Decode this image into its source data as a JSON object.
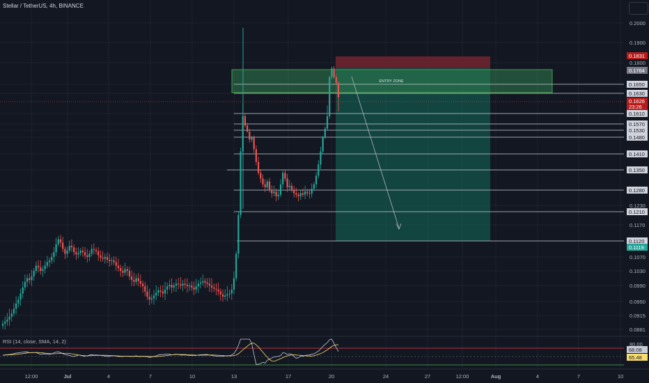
{
  "header": {
    "symbol": "Stellar / TetherUS, 4h, BINANCE"
  },
  "colors": {
    "background": "#131722",
    "up": "#26a69a",
    "down": "#ef5350",
    "grid": "#1e222d",
    "entry_zone_fill": "#2e7d4f",
    "stop_zone_fill": "#7f2731",
    "target_zone_fill": "#145a4d"
  },
  "chart_data": [
    {
      "type": "candlestick",
      "title": "Stellar / TetherUS, 4h, BINANCE",
      "price_axis": {
        "ticks": [
          "0.2000",
          "0.1900",
          "0.1800",
          "0.1650",
          "0.1630",
          "0.1610",
          "0.1570",
          "0.1530",
          "0.1480",
          "0.1410",
          "0.1350",
          "0.1280",
          "0.1230",
          "0.1210",
          "0.1170",
          "0.1120",
          "0.1070",
          "0.1030",
          "0.0990",
          "0.0950",
          "0.0915",
          "0.0881"
        ]
      },
      "time_axis": {
        "ticks": [
          "12:00",
          "Jul",
          "4",
          "7",
          "10",
          "13",
          "17",
          "20",
          "24",
          "27",
          "12:00",
          "Aug",
          "4",
          "7",
          "10"
        ]
      },
      "horizontal_levels": [
        "0.1650",
        "0.1630",
        "0.1610",
        "0.1570",
        "0.1530",
        "0.1480",
        "0.1410",
        "0.1350",
        "0.1280",
        "0.1210",
        "0.1120"
      ],
      "price_tags": [
        {
          "label": "0.1831",
          "color": "#b71c1c"
        },
        {
          "label": "0.1764",
          "color": "#787b86"
        },
        {
          "label": "0.1626",
          "color": "#b71c1c"
        },
        {
          "label": "23:26",
          "color": "#b71c1c"
        },
        {
          "label": "0.1119",
          "color": "#26a69a"
        }
      ],
      "entry_zone": {
        "label": "ENTRY ZONE",
        "low": 0.165,
        "high": 0.1764
      },
      "stop_zone": {
        "low": 0.1764,
        "high": 0.1831
      },
      "target_zone": {
        "low": 0.112,
        "high": 0.1764
      },
      "close_series": [
        0.0895,
        0.09,
        0.0905,
        0.0912,
        0.092,
        0.0932,
        0.0945,
        0.0955,
        0.097,
        0.0985,
        0.1,
        0.101,
        0.1005,
        0.1015,
        0.103,
        0.1045,
        0.104,
        0.103,
        0.1035,
        0.1045,
        0.1055,
        0.106,
        0.107,
        0.1085,
        0.111,
        0.1125,
        0.1115,
        0.1095,
        0.108,
        0.109,
        0.1105,
        0.11,
        0.1085,
        0.1078,
        0.1082,
        0.109,
        0.1085,
        0.1075,
        0.107,
        0.108,
        0.1095,
        0.1092,
        0.1088,
        0.1075,
        0.1068,
        0.1065,
        0.107,
        0.1062,
        0.1058,
        0.106,
        0.1055,
        0.1045,
        0.1038,
        0.103,
        0.1025,
        0.1035,
        0.103,
        0.1015,
        0.1005,
        0.1,
        0.101,
        0.1002,
        0.0995,
        0.0988,
        0.0975,
        0.0962,
        0.0955,
        0.0958,
        0.0965,
        0.0972,
        0.0978,
        0.0975,
        0.097,
        0.098,
        0.0988,
        0.0992,
        0.0985,
        0.099,
        0.0995,
        0.0993,
        0.099,
        0.0995,
        0.0992,
        0.0988,
        0.099,
        0.0985,
        0.098,
        0.0988,
        0.0995,
        0.0998,
        0.1002,
        0.0998,
        0.0995,
        0.099,
        0.0985,
        0.0982,
        0.098,
        0.0975,
        0.0968,
        0.0962,
        0.0965,
        0.0968,
        0.097,
        0.098,
        0.101,
        0.108,
        0.12,
        0.142,
        0.16,
        0.156,
        0.152,
        0.147,
        0.148,
        0.143,
        0.138,
        0.134,
        0.132,
        0.13,
        0.129,
        0.131,
        0.128,
        0.127,
        0.1275,
        0.126,
        0.1265,
        0.13,
        0.134,
        0.132,
        0.129,
        0.1295,
        0.128,
        0.127,
        0.1265,
        0.126,
        0.127,
        0.1265,
        0.1275,
        0.127,
        0.1268,
        0.1285,
        0.13,
        0.133,
        0.137,
        0.142,
        0.148,
        0.154,
        0.16,
        0.17,
        0.176,
        0.17,
        0.166,
        0.1626
      ],
      "rsi": {
        "label": "RSI (14, close, SMA, 14, 2)",
        "values": [
          "68.08",
          "65.48"
        ],
        "levels": [
          "80.00"
        ]
      }
    }
  ]
}
